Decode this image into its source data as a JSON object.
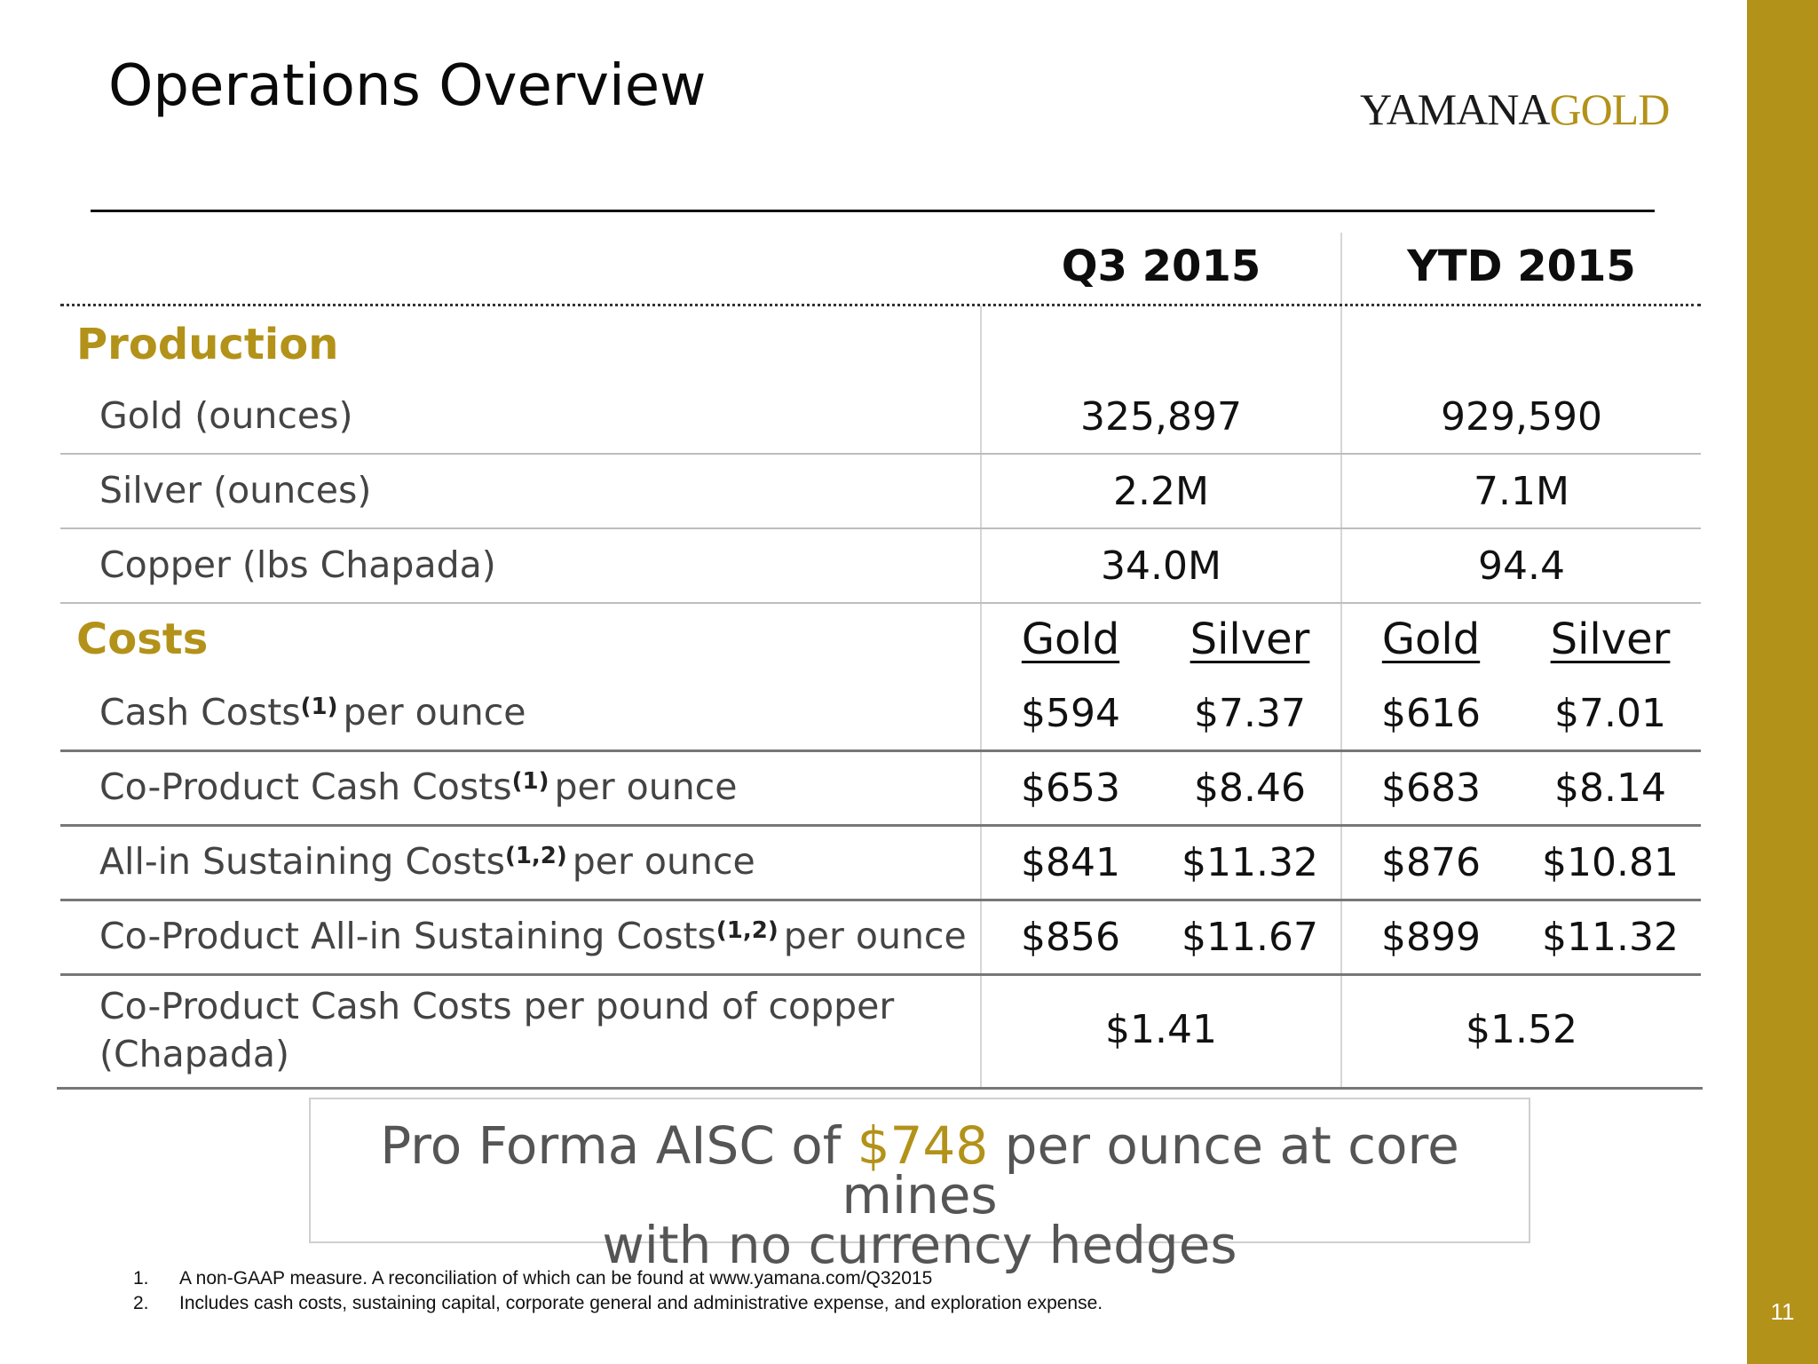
{
  "slide": {
    "title": "Operations Overview",
    "page_number": "11",
    "brand_color": "#b3921a"
  },
  "logo": {
    "part1": "YAMANA",
    "part2": "GOLD"
  },
  "table": {
    "headers": [
      "Q3 2015",
      "YTD 2015"
    ],
    "production": {
      "label": "Production",
      "rows": [
        {
          "label": "Gold (ounces)",
          "q3": "325,897",
          "ytd": "929,590"
        },
        {
          "label": "Silver (ounces)",
          "q3": "2.2M",
          "ytd": "7.1M"
        },
        {
          "label": "Copper (lbs Chapada)",
          "q3": "34.0M",
          "ytd": "94.4"
        }
      ]
    },
    "costs": {
      "label": "Costs",
      "subheaders": [
        "Gold",
        "Silver",
        "Gold",
        "Silver"
      ],
      "rows": [
        {
          "pre": "Cash Costs",
          "sup": "(1)",
          "post": "per ounce",
          "values": [
            "$594",
            "$7.37",
            "$616",
            "$7.01"
          ]
        },
        {
          "pre": "Co-Product Cash Costs",
          "sup": "(1)",
          "post": "per ounce",
          "values": [
            "$653",
            "$8.46",
            "$683",
            "$8.14"
          ]
        },
        {
          "pre": "All-in Sustaining Costs",
          "sup": "(1,2)",
          "post": "per ounce",
          "values": [
            "$841",
            "$11.32",
            "$876",
            "$10.81"
          ]
        },
        {
          "pre": "Co-Product All-in Sustaining Costs",
          "sup": "(1,2)",
          "post": "per ounce",
          "values": [
            "$856",
            "$11.67",
            "$899",
            "$11.32"
          ]
        }
      ],
      "copper_row": {
        "label": "Co-Product Cash Costs per pound of copper (Chapada)",
        "q3": "$1.41",
        "ytd": "$1.52"
      }
    }
  },
  "callout": {
    "pre": "Pro Forma AISC of ",
    "highlight": "$748",
    "post": " per ounce at core mines",
    "line2": "with no currency hedges"
  },
  "footnotes": [
    {
      "num": "1.",
      "text": "A non-GAAP measure. A reconciliation of  which can be found at www.yamana.com/Q32015"
    },
    {
      "num": "2.",
      "text": "Includes cash costs, sustaining capital, corporate general and administrative expense, and exploration expense."
    }
  ]
}
